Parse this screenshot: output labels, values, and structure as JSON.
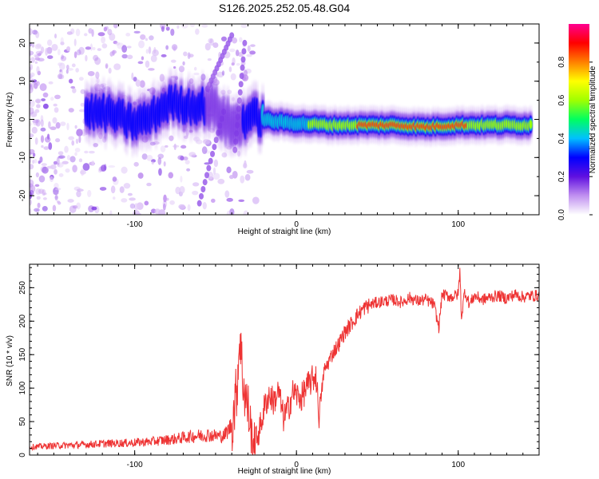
{
  "title": "S126.2025.252.05.48.G04",
  "chart_data": [
    {
      "type": "heatmap",
      "name": "spectrogram",
      "xlabel": "Height of straight line (km)",
      "ylabel": "Frequency (Hz)",
      "xlim": [
        -165,
        150
      ],
      "ylim": [
        -25,
        25
      ],
      "xticks": [
        -100,
        0,
        100
      ],
      "xtick_labels": [
        "-100",
        "0",
        "100"
      ],
      "yticks": [
        -20,
        -10,
        0,
        10,
        20
      ],
      "ytick_labels": [
        "-20",
        "-10",
        "0",
        "10",
        "20"
      ],
      "colorbar": {
        "label": "Normalized spectral amplitude",
        "range": [
          0,
          1
        ],
        "ticks": [
          0.0,
          0.2,
          0.4,
          0.6,
          0.8
        ],
        "tick_labels": [
          "0.0",
          "0.2",
          "0.4",
          "0.6",
          "0.8"
        ],
        "colors": [
          "#ffffff",
          "#c090f0",
          "#6010e0",
          "#0000ff",
          "#00c0ff",
          "#00ff60",
          "#a0ff00",
          "#ffff00",
          "#ff8000",
          "#ff0000",
          "#ff0090"
        ]
      },
      "ridge": [
        {
          "x": -130,
          "f": 2.0,
          "a": 0.35
        },
        {
          "x": -115,
          "f": 1.5,
          "a": 0.3
        },
        {
          "x": -100,
          "f": -1.0,
          "a": 0.32
        },
        {
          "x": -90,
          "f": 0.5,
          "a": 0.28
        },
        {
          "x": -78,
          "f": 4.5,
          "a": 0.4
        },
        {
          "x": -68,
          "f": 3.5,
          "a": 0.38
        },
        {
          "x": -52,
          "f": 3.5,
          "a": 0.25
        },
        {
          "x": -45,
          "f": 0.0,
          "a": 0.25
        },
        {
          "x": -38,
          "f": -2.0,
          "a": 0.22
        },
        {
          "x": -28,
          "f": 1.0,
          "a": 0.35
        },
        {
          "x": -15,
          "f": -0.5,
          "a": 0.45
        },
        {
          "x": 0,
          "f": -1.0,
          "a": 0.5
        },
        {
          "x": 20,
          "f": -1.5,
          "a": 0.7
        },
        {
          "x": 40,
          "f": -1.5,
          "a": 0.85
        },
        {
          "x": 60,
          "f": -1.5,
          "a": 0.9
        },
        {
          "x": 80,
          "f": -2.0,
          "a": 0.88
        },
        {
          "x": 100,
          "f": -1.5,
          "a": 0.85
        },
        {
          "x": 115,
          "f": -1.5,
          "a": 0.8
        },
        {
          "x": 130,
          "f": -1.5,
          "a": 0.75
        },
        {
          "x": 145,
          "f": -1.5,
          "a": 0.6
        }
      ]
    },
    {
      "type": "line",
      "name": "snr",
      "xlabel": "Height of straight line (km)",
      "ylabel": "SNR (10 * v/v)",
      "xlim": [
        -165,
        150
      ],
      "ylim": [
        0,
        285
      ],
      "xticks": [
        -100,
        0,
        100
      ],
      "xtick_labels": [
        "-100",
        "0",
        "100"
      ],
      "yticks": [
        0,
        50,
        100,
        150,
        200,
        250
      ],
      "ytick_labels": [
        "0",
        "50",
        "100",
        "150",
        "200",
        "250"
      ],
      "color": "#ee3333",
      "series": [
        {
          "name": "SNR",
          "x": [
            -165,
            -150,
            -135,
            -120,
            -105,
            -90,
            -75,
            -65,
            -55,
            -45,
            -40,
            -37,
            -35,
            -33,
            -31,
            -30,
            -28,
            -26,
            -24,
            -22,
            -20,
            -17,
            -14,
            -11,
            -8,
            -5,
            -2,
            0,
            3,
            6,
            9,
            12,
            14,
            17,
            20,
            23,
            26,
            29,
            32,
            35,
            38,
            42,
            46,
            50,
            55,
            60,
            65,
            70,
            75,
            80,
            85,
            88,
            90,
            93,
            96,
            100,
            101,
            102,
            104,
            107,
            110,
            115,
            120,
            125,
            130,
            135,
            140,
            145,
            150
          ],
          "y": [
            12,
            14,
            15,
            17,
            18,
            20,
            24,
            28,
            30,
            28,
            45,
            95,
            180,
            110,
            80,
            70,
            35,
            15,
            30,
            45,
            70,
            90,
            80,
            95,
            55,
            70,
            95,
            90,
            85,
            100,
            110,
            120,
            60,
            125,
            140,
            155,
            165,
            180,
            190,
            200,
            210,
            220,
            225,
            228,
            230,
            232,
            228,
            235,
            230,
            232,
            225,
            190,
            240,
            238,
            236,
            240,
            275,
            205,
            245,
            225,
            238,
            232,
            236,
            238,
            234,
            240,
            236,
            238,
            238
          ]
        }
      ]
    }
  ]
}
